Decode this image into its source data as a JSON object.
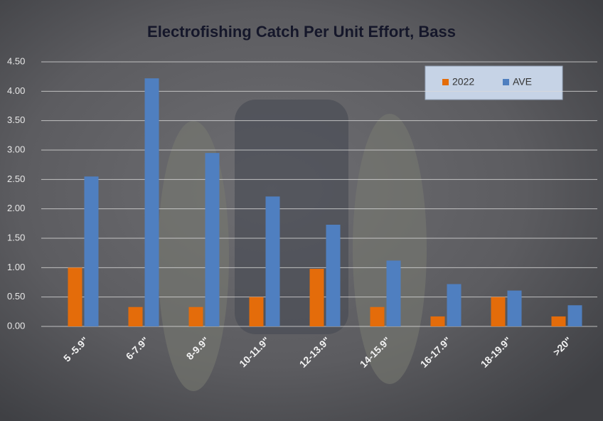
{
  "chart_data": {
    "type": "bar",
    "title": "Electrofishing Catch Per Unit Effort, Bass",
    "categories": [
      "5 -5.9\"",
      "6-7.9\"",
      "8-9.9\"",
      "10-11.9\"",
      "12-13.9\"",
      "14-15.9\"",
      "16-17.9\"",
      "18-19.9\"",
      ">20\""
    ],
    "series": [
      {
        "name": "2022",
        "color": "#e46c0a",
        "values": [
          1.0,
          0.33,
          0.33,
          0.5,
          0.98,
          0.33,
          0.17,
          0.5,
          0.17
        ]
      },
      {
        "name": "AVE",
        "color": "#4f7fc0",
        "values": [
          2.55,
          4.22,
          2.95,
          2.21,
          1.73,
          1.12,
          0.72,
          0.61,
          0.36
        ]
      }
    ],
    "ylim": [
      0,
      4.5
    ],
    "yticks": [
      {
        "value": 0,
        "label": "0.00"
      },
      {
        "value": 0.5,
        "label": "0.50"
      },
      {
        "value": 1,
        "label": "1.00"
      },
      {
        "value": 1.5,
        "label": "1.50"
      },
      {
        "value": 2,
        "label": "2.00"
      },
      {
        "value": 2.5,
        "label": "2.50"
      },
      {
        "value": 3,
        "label": "3.00"
      },
      {
        "value": 3.5,
        "label": "3.50"
      },
      {
        "value": 4,
        "label": "4.00"
      },
      {
        "value": 4.5,
        "label": "4.50"
      }
    ],
    "grid": true,
    "legend": "top-right"
  }
}
